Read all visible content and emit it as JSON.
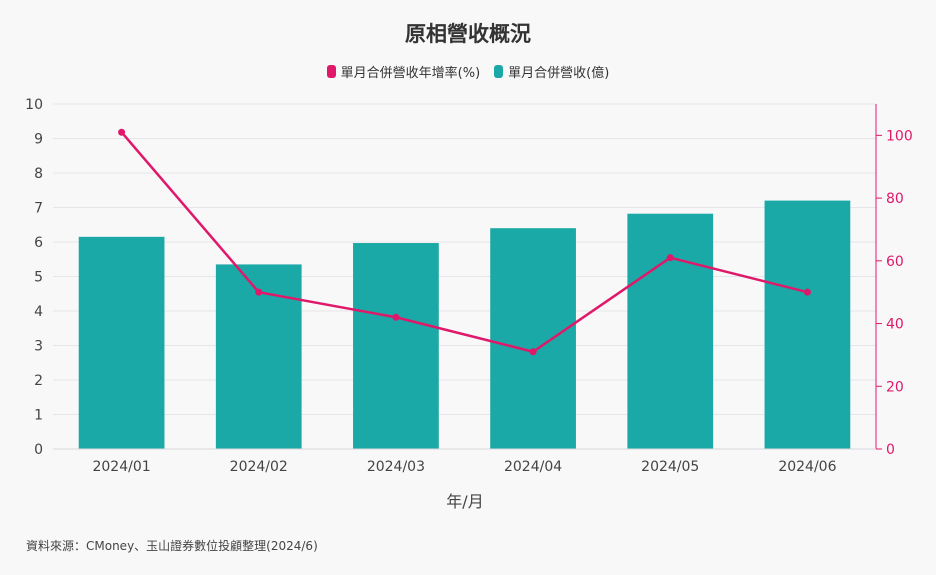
{
  "chart_data": {
    "type": "bar",
    "title": "原相營收概況",
    "xlabel": "年/月",
    "categories": [
      "2024/01",
      "2024/02",
      "2024/03",
      "2024/04",
      "2024/05",
      "2024/06"
    ],
    "series": [
      {
        "name": "單月合併營收年增率(%)",
        "type": "line",
        "axis": "right",
        "color": "#e0186a",
        "values": [
          101,
          50,
          42,
          31,
          61,
          50
        ]
      },
      {
        "name": "單月合併營收(億)",
        "type": "bar",
        "axis": "left",
        "color": "#1aa9a6",
        "values": [
          6.15,
          5.35,
          5.97,
          6.4,
          6.82,
          7.2
        ]
      }
    ],
    "y_left": {
      "ylim": [
        0,
        10
      ],
      "ticks": [
        "0",
        "1",
        "2",
        "3",
        "4",
        "5",
        "6",
        "7",
        "8",
        "9",
        "10"
      ]
    },
    "y_right": {
      "ylim": [
        0,
        110
      ],
      "ticks": [
        "0",
        "20",
        "40",
        "60",
        "80",
        "100"
      ]
    },
    "grid": true,
    "legend": "top-center"
  },
  "source_note": "資料來源：CMoney、玉山證券數位投顧整理(2024/6)"
}
